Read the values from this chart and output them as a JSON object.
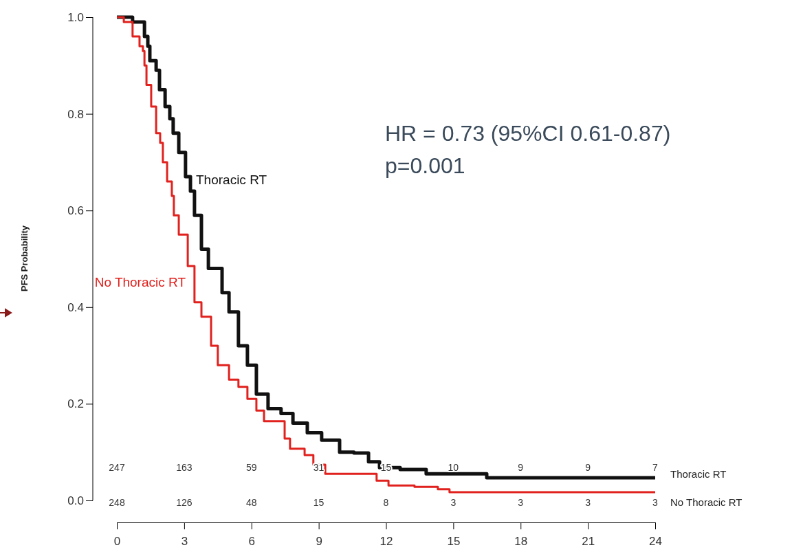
{
  "chart_data": {
    "type": "step",
    "ylabel": "PFS Probability",
    "xlim": [
      0,
      24
    ],
    "xticks": [
      0,
      3,
      6,
      9,
      12,
      15,
      18,
      21,
      24
    ],
    "ylim": [
      0,
      1
    ],
    "yticks": [
      {
        "value": 0,
        "label": "0.0"
      },
      0.2,
      0.4,
      0.6,
      0.8,
      {
        "value": 1,
        "label": "1.0"
      }
    ],
    "series": [
      {
        "name": "Thoracic RT",
        "color": "#111111",
        "x": [
          0,
          0.46,
          0.7,
          1.23,
          1.38,
          1.47,
          1.75,
          1.9,
          2.15,
          2.36,
          2.51,
          2.76,
          3.06,
          3.28,
          3.46,
          3.77,
          4.08,
          4.69,
          5.0,
          5.42,
          5.82,
          6.22,
          6.74,
          7.32,
          7.85,
          8.24,
          8.49,
          9.13,
          9.93,
          10.57,
          11.22,
          11.71,
          12.63,
          13.79,
          16.49,
          24
        ],
        "values": [
          1.0,
          1.0,
          0.99,
          0.96,
          0.94,
          0.91,
          0.89,
          0.85,
          0.815,
          0.79,
          0.76,
          0.72,
          0.67,
          0.64,
          0.59,
          0.52,
          0.48,
          0.43,
          0.39,
          0.32,
          0.28,
          0.22,
          0.19,
          0.18,
          0.16,
          0.16,
          0.14,
          0.125,
          0.1,
          0.098,
          0.08,
          0.068,
          0.064,
          0.055,
          0.047,
          0.047
        ]
      },
      {
        "name": "No Thoracic RT",
        "color": "#e0211d",
        "x": [
          0,
          0.15,
          0.31,
          0.7,
          1.01,
          1.16,
          1.23,
          1.32,
          1.53,
          1.75,
          1.93,
          2.05,
          2.24,
          2.45,
          2.54,
          2.76,
          3.16,
          3.46,
          3.77,
          4.2,
          4.5,
          5.0,
          5.42,
          5.82,
          6.22,
          6.56,
          7.48,
          7.72,
          8.37,
          8.76,
          9.29,
          10.7,
          11.58,
          12.11,
          13.27,
          14.31,
          14.83,
          24
        ],
        "values": [
          1.0,
          1.0,
          0.99,
          0.96,
          0.94,
          0.93,
          0.9,
          0.86,
          0.815,
          0.76,
          0.74,
          0.7,
          0.66,
          0.63,
          0.59,
          0.55,
          0.485,
          0.41,
          0.38,
          0.32,
          0.28,
          0.25,
          0.235,
          0.21,
          0.186,
          0.164,
          0.128,
          0.107,
          0.094,
          0.074,
          0.055,
          0.055,
          0.041,
          0.031,
          0.028,
          0.023,
          0.017,
          0.017
        ]
      }
    ],
    "annotations": [
      "HR = 0.73 (95%CI 0.61-0.87)",
      "p=0.001",
      "247",
      "163",
      "59",
      "31",
      "15",
      "10",
      "9",
      "9",
      "7",
      "248",
      "126",
      "48",
      "15",
      "8",
      "3",
      "3",
      "3",
      "3"
    ]
  }
}
